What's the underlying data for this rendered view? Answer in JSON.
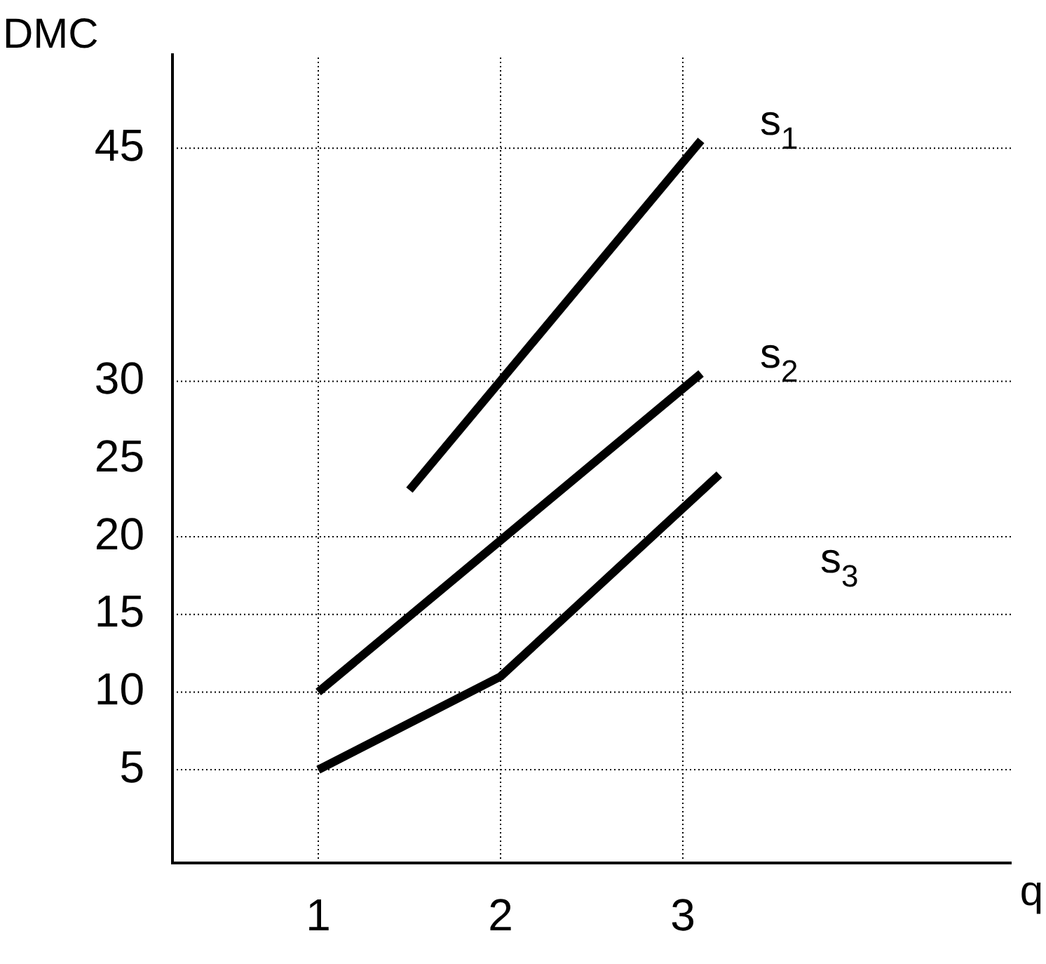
{
  "chart_data": {
    "type": "line",
    "xlabel": "q",
    "ylabel": "DMC",
    "xlim": [
      0.2,
      4.8
    ],
    "ylim": [
      -1,
      51
    ],
    "xticks": [
      1,
      2,
      3
    ],
    "yticks": [
      5,
      10,
      15,
      20,
      25,
      30,
      45
    ],
    "grid": false,
    "legend": false,
    "marker": "none",
    "line_style": "solid",
    "series": [
      {
        "name": "s$_{1}$",
        "color": "#000000",
        "x": [
          1.5,
          3.1
        ],
        "values": [
          23,
          45.5
        ]
      },
      {
        "name": "s$_{2}$",
        "color": "#000000",
        "x": [
          1,
          3.1
        ],
        "values": [
          10,
          30.5
        ]
      },
      {
        "name": "s$_{3}$",
        "color": "#000000",
        "x": [
          1,
          2,
          3.2
        ],
        "values": [
          5,
          11,
          24
        ]
      }
    ],
    "ref_lines": [
      {
        "axis": "y",
        "value": 45,
        "line_style": "dotted",
        "color": "#000000"
      },
      {
        "axis": "y",
        "value": 30,
        "line_style": "dotted",
        "color": "#000000"
      },
      {
        "axis": "y",
        "value": 20,
        "line_style": "dotted",
        "color": "#000000"
      },
      {
        "axis": "y",
        "value": 15,
        "line_style": "dotted",
        "color": "#000000"
      },
      {
        "axis": "y",
        "value": 10,
        "line_style": "dotted",
        "color": "#000000"
      },
      {
        "axis": "y",
        "value": 5,
        "line_style": "dotted",
        "color": "#000000"
      },
      {
        "axis": "x",
        "value": 1,
        "line_style": "dotted",
        "color": "#000000"
      },
      {
        "axis": "x",
        "value": 2,
        "line_style": "dotted",
        "color": "#000000"
      },
      {
        "axis": "x",
        "value": 3,
        "line_style": "dotted",
        "color": "#000000"
      }
    ]
  }
}
